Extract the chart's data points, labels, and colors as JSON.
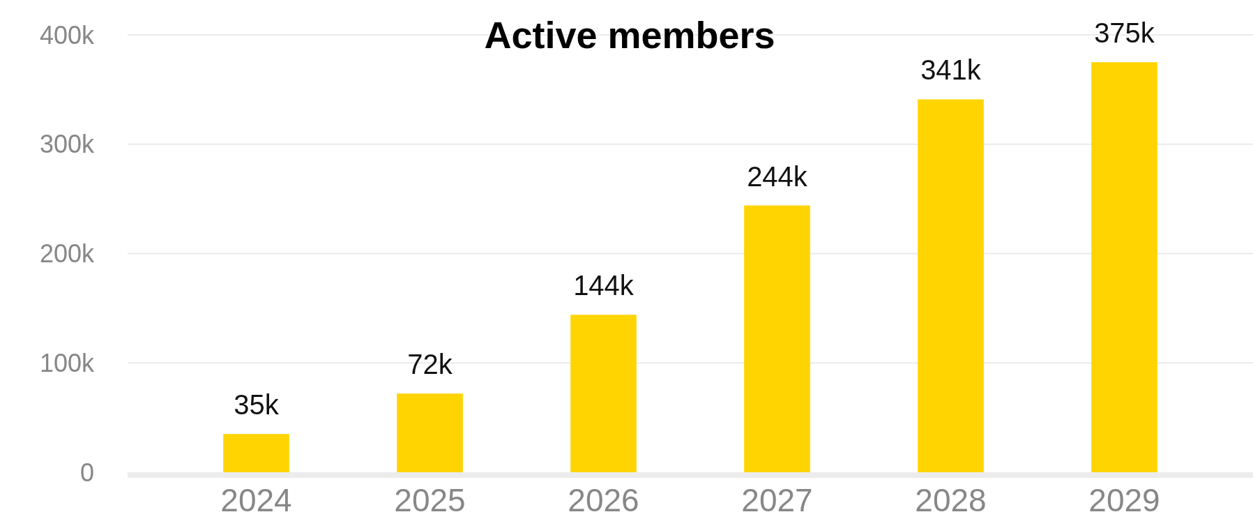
{
  "chart_data": {
    "type": "bar",
    "title": "Active members",
    "categories": [
      "2024",
      "2025",
      "2026",
      "2027",
      "2028",
      "2029"
    ],
    "values": [
      35000,
      72000,
      144000,
      244000,
      341000,
      375000
    ],
    "value_labels": [
      "35k",
      "72k",
      "144k",
      "244k",
      "341k",
      "375k"
    ],
    "color": "#ffd400",
    "ylim": [
      0,
      400000
    ],
    "yticks": [
      {
        "value": 0,
        "label": "0"
      },
      {
        "value": 100000,
        "label": "100k"
      },
      {
        "value": 200000,
        "label": "200k"
      },
      {
        "value": 300000,
        "label": "300k"
      },
      {
        "value": 400000,
        "label": "400k"
      }
    ],
    "grid": "y"
  }
}
